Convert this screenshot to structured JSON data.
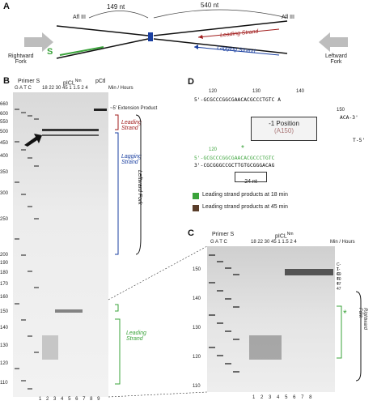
{
  "panelA": {
    "letter": "A",
    "dist_left": "149 nt",
    "dist_right": "540 nt",
    "afl3_left": "Afl III",
    "afl3_right": "Afl III",
    "rightward_fork": "Rightward\nFork",
    "leftward_fork": "Leftward\nFork",
    "s_label": "S",
    "leading_strand": "Leading Strand",
    "lagging_strand": "Lagging Strand"
  },
  "panelB": {
    "letter": "B",
    "primer_s": "Primer S",
    "lanes_gatc": "G A T C",
    "mm_header": "18 22 30 45 1 1.5 2 4",
    "picl": "pICL",
    "picl_sup": "Nm",
    "pctl": "pCtl",
    "min_hours": "Min / Hours",
    "ext_label": "~5' Extension Product",
    "leading_strand": "Leading\nStrand",
    "lagging_strand": "Lagging\nStrand",
    "leftward_fork": "Leftward Fork",
    "leading_strand_bottom": "Leading\nStrand",
    "size_marks": [
      "660",
      "600",
      "550",
      "500",
      "450",
      "400",
      "350",
      "300",
      "250",
      "200",
      "190",
      "180",
      "170",
      "160",
      "150",
      "140",
      "130",
      "120",
      "110"
    ],
    "lane_numbers": [
      "1",
      "2",
      "3",
      "4",
      "5",
      "6",
      "7",
      "8",
      "9"
    ]
  },
  "panelC": {
    "letter": "C",
    "primer_s": "Primer S",
    "lanes_gatc": "G A T C",
    "picl": "pICL",
    "picl_sup": "Nm",
    "mm_header": "18 22 30 45 1 1.5 2 4",
    "min_hours": "Min / Hours",
    "size_marks": [
      "150",
      "140",
      "130",
      "120",
      "110"
    ],
    "band_labels": [
      "C-1",
      "T-40",
      "C-40",
      "T-47",
      "T-47"
    ],
    "lane_numbers": [
      "1",
      "2",
      "3",
      "4",
      "5",
      "6",
      "7",
      "8"
    ],
    "rightward_fork": "Rightward Fork",
    "star": "*"
  },
  "panelD": {
    "letter": "D",
    "pos_top": [
      "120",
      "130",
      "140"
    ],
    "pos_150": "150",
    "top_strand": "5'-GCGCCCGGCGAACACGCCCTGTC A",
    "top_strand_end": "ACA-3'",
    "mid_strand": "T-5'",
    "minus1_title": "-1 Position",
    "minus1_sub": "(A150)",
    "green_120": "120",
    "green_star": "*",
    "green_strand": "5'-GCGCCCGGCGAACACGCCCTGTC",
    "bottom_strand": "3'-CGCGGGCCGCTTGTGCGGGACAG",
    "len_24": "24 nt",
    "legend_green": "Leading strand products at 18 min",
    "legend_brown": "Leading strand products at 45 min",
    "color_green": "#3aa33a",
    "color_brown": "#5a3d2a"
  }
}
